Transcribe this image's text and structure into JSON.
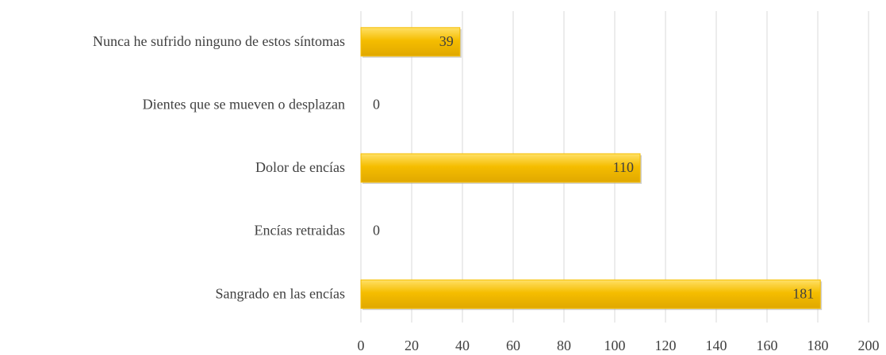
{
  "chart_data": {
    "type": "bar",
    "orientation": "horizontal",
    "categories": [
      "Nunca he sufrido ninguno de estos síntomas",
      "Dientes que se mueven o desplazan",
      "Dolor de encías",
      "Encías retraidas",
      "Sangrado en las encías"
    ],
    "values": [
      39,
      0,
      110,
      0,
      181
    ],
    "color": "#f5bd00",
    "xlim": [
      0,
      200
    ],
    "xticks": [
      0,
      20,
      40,
      60,
      80,
      100,
      120,
      140,
      160,
      180,
      200
    ],
    "grid": true
  }
}
